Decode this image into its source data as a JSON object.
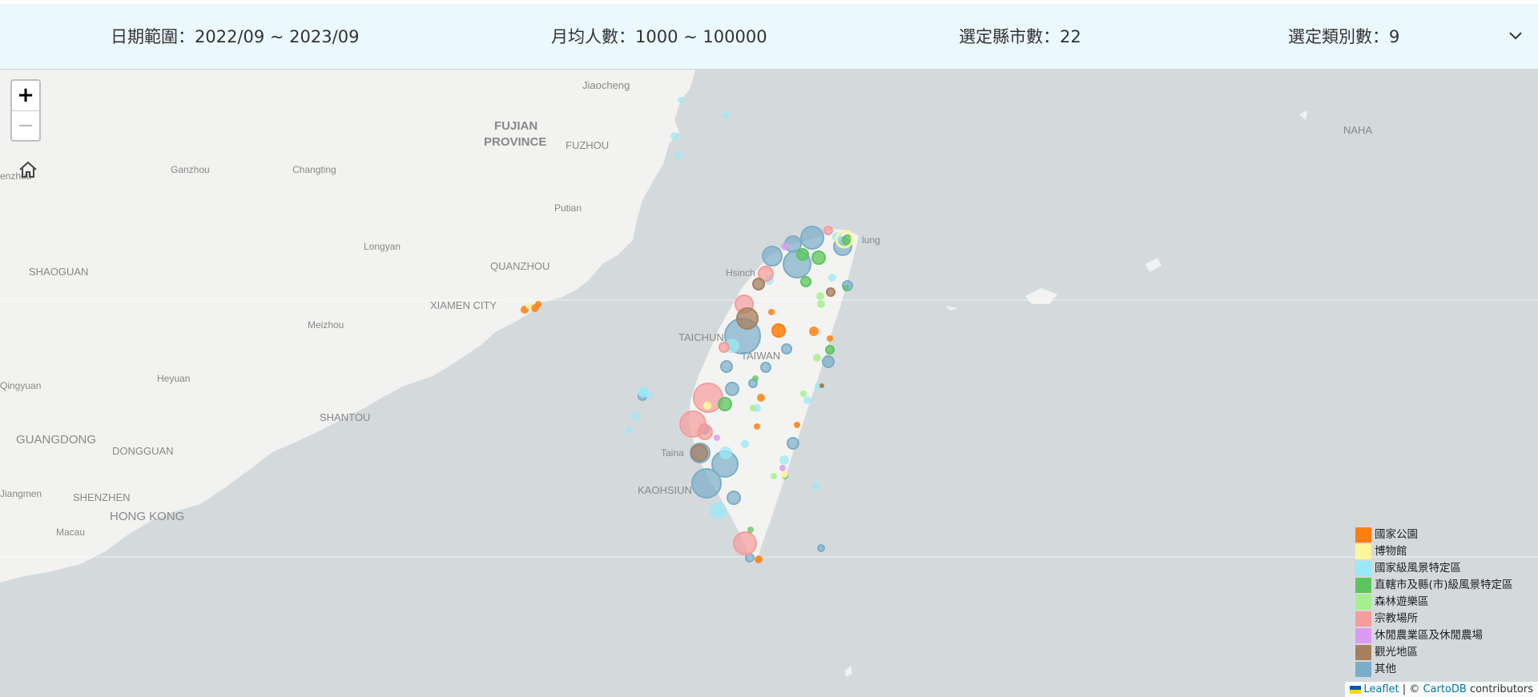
{
  "filters": {
    "date_label": "日期範圍：",
    "date_value": "2022/09 ~ 2023/09",
    "visitors_label": "月均人數：",
    "visitors_value": "1000 ~ 100000",
    "counties_label": "選定縣市數：",
    "counties_value": "22",
    "categories_label": "選定類別數：",
    "categories_value": "9"
  },
  "zoom": {
    "in": "+",
    "out": "−"
  },
  "map_labels": {
    "jiaocheng": "Jiaocheng",
    "fujian1": "FUJIAN",
    "fujian2": "PROVINCE",
    "fuzhou": "FUZHOU",
    "zhenzhou": "enzhou",
    "ganzhou": "Ganzhou",
    "changting": "Changting",
    "putian": "Putian",
    "longyan": "Longyan",
    "shaoguan": "SHAOGUAN",
    "quanzhou": "QUANZHOU",
    "xiamen": "XIAMEN CITY",
    "meizhou": "Meizhou",
    "taichung": "TAICHUN",
    "taiwan": "TAIWAN",
    "qingyuan": "Qingyuan",
    "heyuan": "Heyuan",
    "shantou": "SHANTOU",
    "guangdong": "GUANGDONG",
    "dongguan": "DONGGUAN",
    "tainan": "Taina",
    "kaohsiung": "KAOHSIUN",
    "jiangmen": "Jiangmen",
    "shenzhen": "SHENZHEN",
    "hongkong": "HONG KONG",
    "macau": "Macau",
    "naha": "NAHA",
    "hsinchu": "Hsinch",
    "keelung": "lung"
  },
  "legend": [
    {
      "label": "國家公園",
      "color": "#ff7f0e"
    },
    {
      "label": "博物館",
      "color": "#fff59a"
    },
    {
      "label": "國家級風景特定區",
      "color": "#9be8f7"
    },
    {
      "label": "直轄市及縣(市)級風景特定區",
      "color": "#5dc55d"
    },
    {
      "label": "森林遊樂區",
      "color": "#a6ef8f"
    },
    {
      "label": "宗教場所",
      "color": "#f59c9c"
    },
    {
      "label": "休閒農業區及休閒農場",
      "color": "#db9bf2"
    },
    {
      "label": "觀光地區",
      "color": "#a67f5f"
    },
    {
      "label": "其他",
      "color": "#7badc9"
    }
  ],
  "attribution": {
    "leaflet": "Leaflet",
    "sep": " | © ",
    "carto": "CartoDB",
    "contrib": " contributors"
  }
}
